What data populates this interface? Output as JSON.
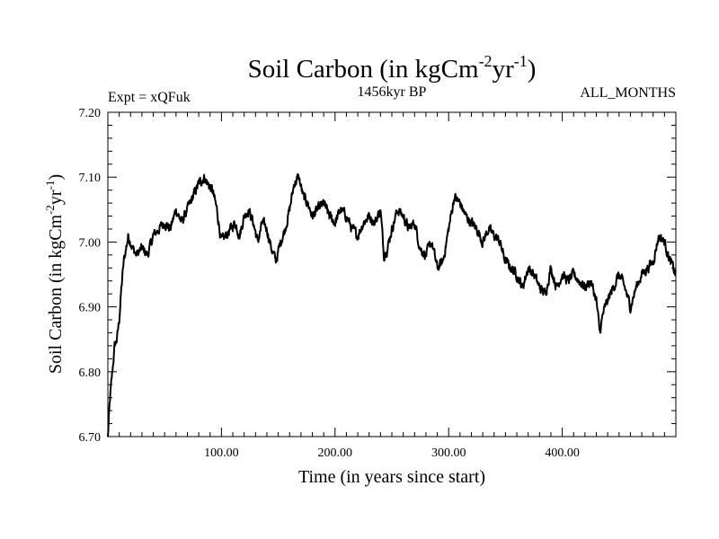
{
  "chart_data": {
    "type": "line",
    "title_main": "Soil Carbon (in kgCm",
    "title_sup1": "-2",
    "title_mid": "yr",
    "title_sup2": "-1",
    "title_end": ")",
    "subtitle_left": "Expt = xQFuk",
    "subtitle_center": "1456kyr BP",
    "subtitle_right": "ALL_MONTHS",
    "xlabel": "Time (in years since start)",
    "ylabel_main": "Soil Carbon (in kgCm",
    "ylabel_sup1": "-2",
    "ylabel_mid": "yr",
    "ylabel_sup2": "-1",
    "ylabel_end": ")",
    "xlim": [
      0,
      500
    ],
    "ylim": [
      6.7,
      7.2
    ],
    "x_ticks": [
      100,
      200,
      300,
      400
    ],
    "x_tick_labels": [
      "100.00",
      "200.00",
      "300.00",
      "400.00"
    ],
    "y_ticks": [
      6.7,
      6.8,
      6.9,
      7.0,
      7.1,
      7.2
    ],
    "y_tick_labels": [
      "6.70",
      "6.80",
      "6.90",
      "7.00",
      "7.10",
      "7.20"
    ],
    "series": [
      {
        "name": "Soil Carbon",
        "x": [
          0,
          2,
          4,
          6,
          8,
          10,
          12,
          14,
          16,
          18,
          20,
          22,
          25,
          30,
          35,
          40,
          45,
          50,
          55,
          60,
          65,
          70,
          75,
          80,
          85,
          88,
          92,
          96,
          100,
          104,
          108,
          112,
          116,
          120,
          124,
          128,
          132,
          136,
          140,
          144,
          148,
          152,
          156,
          160,
          164,
          168,
          172,
          176,
          180,
          185,
          190,
          195,
          200,
          205,
          210,
          215,
          220,
          225,
          230,
          235,
          240,
          243,
          246,
          250,
          255,
          260,
          265,
          270,
          275,
          280,
          285,
          290,
          295,
          300,
          305,
          310,
          315,
          320,
          325,
          330,
          335,
          340,
          345,
          350,
          355,
          360,
          365,
          370,
          375,
          380,
          385,
          390,
          395,
          400,
          405,
          410,
          415,
          420,
          425,
          430,
          433,
          436,
          440,
          445,
          450,
          455,
          460,
          465,
          470,
          475,
          480,
          485,
          490,
          495,
          500
        ],
        "values": [
          6.7,
          6.76,
          6.8,
          6.84,
          6.85,
          6.88,
          6.93,
          6.97,
          6.99,
          7.01,
          7.0,
          6.99,
          6.98,
          6.99,
          6.98,
          7.01,
          7.02,
          7.03,
          7.02,
          7.05,
          7.03,
          7.05,
          7.07,
          7.09,
          7.1,
          7.09,
          7.08,
          7.05,
          7.0,
          7.01,
          7.02,
          7.03,
          7.01,
          7.04,
          7.05,
          7.03,
          7.0,
          7.03,
          7.02,
          6.99,
          6.97,
          7.0,
          7.02,
          7.05,
          7.09,
          7.1,
          7.07,
          7.06,
          7.04,
          7.05,
          7.06,
          7.04,
          7.03,
          7.05,
          7.04,
          7.02,
          7.01,
          7.03,
          7.04,
          7.03,
          7.05,
          6.98,
          6.99,
          7.02,
          7.05,
          7.04,
          7.02,
          7.03,
          6.99,
          6.98,
          7.0,
          6.96,
          6.97,
          7.02,
          7.07,
          7.06,
          7.04,
          7.03,
          7.02,
          7.0,
          7.02,
          7.01,
          7.0,
          6.97,
          6.96,
          6.95,
          6.93,
          6.96,
          6.95,
          6.93,
          6.92,
          6.96,
          6.93,
          6.95,
          6.94,
          6.95,
          6.94,
          6.93,
          6.94,
          6.91,
          6.86,
          6.89,
          6.91,
          6.93,
          6.95,
          6.93,
          6.9,
          6.93,
          6.95,
          6.96,
          6.97,
          7.01,
          7.0,
          6.97,
          6.95
        ]
      }
    ],
    "noise_amplitude": 0.014,
    "line_color": "#000000"
  }
}
